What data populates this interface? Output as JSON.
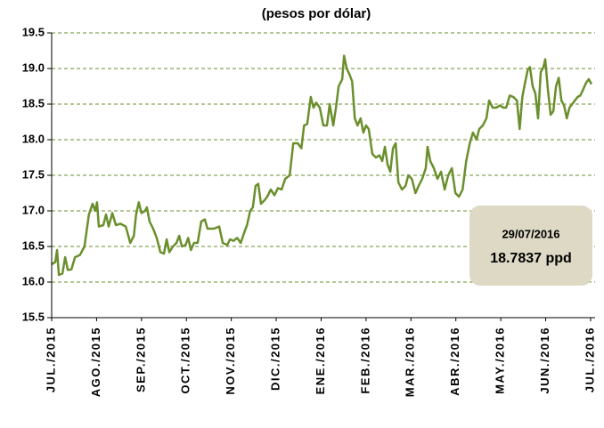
{
  "chart_data": {
    "type": "line",
    "title": "(pesos por dólar)",
    "annotation": {
      "date": "29/07/2016",
      "value": "18.7837 ppd"
    },
    "color": "#6a8f2c",
    "grid": true,
    "ylim": [
      15.5,
      19.5
    ],
    "yticks": [
      {
        "value": 15.5,
        "label": "15.5"
      },
      {
        "value": 16,
        "label": "16.0"
      },
      {
        "value": 16.5,
        "label": "16.5"
      },
      {
        "value": 17,
        "label": "17.0"
      },
      {
        "value": 17.5,
        "label": "17.5"
      },
      {
        "value": 18,
        "label": "18.0"
      },
      {
        "value": 18.5,
        "label": "18.5"
      },
      {
        "value": 19,
        "label": "19.0"
      },
      {
        "value": 19.5,
        "label": "19.5"
      }
    ],
    "xlim": [
      0,
      12.1
    ],
    "xticks": [
      {
        "value": 0,
        "label": "JUL./2015"
      },
      {
        "value": 1,
        "label": "AGO./2015"
      },
      {
        "value": 2,
        "label": "SEP./2015"
      },
      {
        "value": 3,
        "label": "OCT./2015"
      },
      {
        "value": 4,
        "label": "NOV./2015"
      },
      {
        "value": 5,
        "label": "DIC./2015"
      },
      {
        "value": 6,
        "label": "ENE./2016"
      },
      {
        "value": 7,
        "label": "FEB./2016"
      },
      {
        "value": 8,
        "label": "MAR./2016"
      },
      {
        "value": 9,
        "label": "ABR./2016"
      },
      {
        "value": 10,
        "label": "MAY./2016"
      },
      {
        "value": 11,
        "label": "JUN./2016"
      },
      {
        "value": 12,
        "label": "JUL./2016"
      }
    ],
    "x": [
      0,
      0.08,
      0.12,
      0.16,
      0.24,
      0.3,
      0.36,
      0.44,
      0.52,
      0.63,
      0.73,
      0.83,
      0.91,
      0.97,
      1.01,
      1.05,
      1.15,
      1.21,
      1.27,
      1.35,
      1.43,
      1.53,
      1.65,
      1.75,
      1.83,
      1.88,
      1.94,
      2.0,
      2.08,
      2.12,
      2.18,
      2.26,
      2.34,
      2.42,
      2.5,
      2.56,
      2.62,
      2.7,
      2.78,
      2.84,
      2.9,
      2.98,
      3.04,
      3.1,
      3.17,
      3.25,
      3.33,
      3.41,
      3.47,
      3.61,
      3.73,
      3.81,
      3.91,
      3.97,
      4.05,
      4.13,
      4.21,
      4.29,
      4.35,
      4.42,
      4.48,
      4.54,
      4.6,
      4.66,
      4.74,
      4.8,
      4.88,
      4.96,
      5.04,
      5.12,
      5.2,
      5.3,
      5.38,
      5.48,
      5.56,
      5.62,
      5.69,
      5.77,
      5.83,
      5.89,
      5.97,
      6.05,
      6.13,
      6.19,
      6.27,
      6.33,
      6.39,
      6.47,
      6.51,
      6.57,
      6.63,
      6.69,
      6.75,
      6.81,
      6.88,
      6.94,
      7.0,
      7.06,
      7.14,
      7.22,
      7.3,
      7.36,
      7.42,
      7.48,
      7.54,
      7.6,
      7.66,
      7.72,
      7.8,
      7.88,
      7.94,
      8.02,
      8.1,
      8.17,
      8.25,
      8.33,
      8.37,
      8.43,
      8.51,
      8.59,
      8.67,
      8.75,
      8.83,
      8.91,
      8.99,
      9.07,
      9.15,
      9.23,
      9.31,
      9.38,
      9.46,
      9.52,
      9.6,
      9.68,
      9.74,
      9.82,
      9.9,
      9.98,
      10.06,
      10.12,
      10.2,
      10.28,
      10.36,
      10.42,
      10.48,
      10.54,
      10.6,
      10.65,
      10.71,
      10.77,
      10.83,
      10.89,
      10.95,
      10.99,
      11.05,
      11.11,
      11.17,
      11.23,
      11.29,
      11.35,
      11.41,
      11.47,
      11.53,
      11.59,
      11.65,
      11.71,
      11.77,
      11.83,
      11.9,
      11.96,
      12.02
    ],
    "values": [
      16.25,
      16.28,
      16.45,
      16.1,
      16.12,
      16.35,
      16.17,
      16.18,
      16.35,
      16.38,
      16.5,
      16.95,
      17.1,
      17.0,
      17.12,
      16.78,
      16.8,
      16.95,
      16.78,
      16.97,
      16.8,
      16.82,
      16.78,
      16.55,
      16.65,
      16.95,
      17.12,
      16.97,
      17.0,
      17.05,
      16.85,
      16.75,
      16.62,
      16.42,
      16.4,
      16.6,
      16.42,
      16.5,
      16.55,
      16.65,
      16.5,
      16.52,
      16.62,
      16.45,
      16.55,
      16.55,
      16.85,
      16.88,
      16.75,
      16.75,
      16.78,
      16.55,
      16.52,
      16.6,
      16.58,
      16.62,
      16.55,
      16.7,
      16.8,
      17.0,
      17.05,
      17.35,
      17.38,
      17.1,
      17.15,
      17.2,
      17.3,
      17.22,
      17.32,
      17.3,
      17.45,
      17.5,
      17.95,
      17.95,
      17.88,
      18.2,
      18.22,
      18.6,
      18.45,
      18.52,
      18.45,
      18.2,
      18.2,
      18.5,
      18.2,
      18.45,
      18.75,
      18.85,
      19.18,
      19.0,
      18.92,
      18.82,
      18.3,
      18.2,
      18.3,
      18.1,
      18.2,
      18.15,
      17.8,
      17.75,
      17.78,
      17.7,
      17.9,
      17.65,
      17.55,
      17.88,
      17.95,
      17.4,
      17.3,
      17.35,
      17.5,
      17.45,
      17.25,
      17.35,
      17.45,
      17.6,
      17.9,
      17.7,
      17.6,
      17.45,
      17.55,
      17.3,
      17.5,
      17.6,
      17.25,
      17.2,
      17.3,
      17.7,
      17.95,
      18.1,
      18.0,
      18.15,
      18.2,
      18.3,
      18.55,
      18.45,
      18.45,
      18.48,
      18.45,
      18.45,
      18.62,
      18.6,
      18.55,
      18.15,
      18.6,
      18.8,
      18.98,
      19.02,
      18.75,
      18.65,
      18.3,
      18.95,
      19.02,
      19.13,
      18.7,
      18.35,
      18.4,
      18.75,
      18.87,
      18.55,
      18.48,
      18.3,
      18.45,
      18.5,
      18.55,
      18.6,
      18.62,
      18.7,
      18.8,
      18.85,
      18.78
    ]
  }
}
